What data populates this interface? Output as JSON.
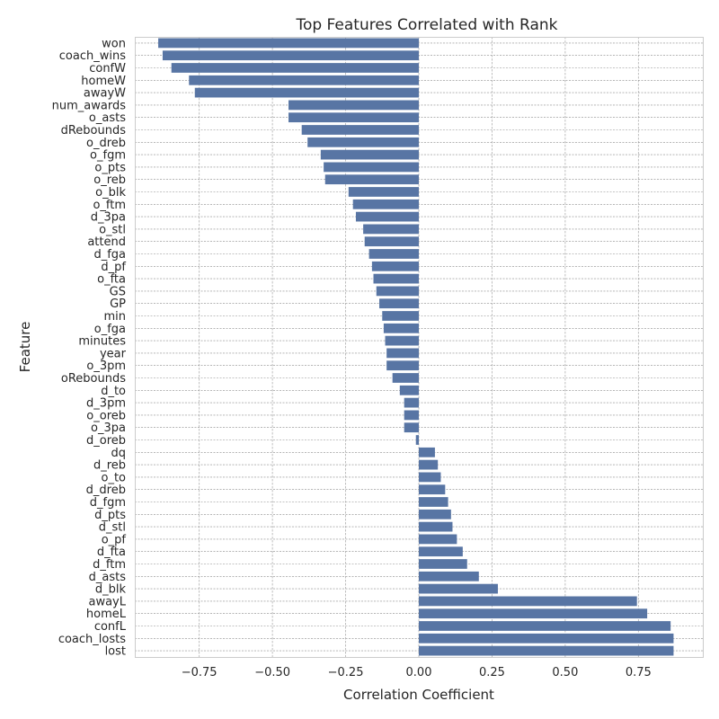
{
  "chart_data": {
    "type": "bar",
    "orientation": "horizontal",
    "title": "Top Features Correlated with Rank",
    "xlabel": "Correlation Coefficient",
    "ylabel": "Feature",
    "xlim": [
      -0.97,
      0.97
    ],
    "xticks": [
      -0.75,
      -0.5,
      -0.25,
      0.0,
      0.25,
      0.5,
      0.75
    ],
    "xtick_labels": [
      "−0.75",
      "−0.50",
      "−0.25",
      "0.00",
      "0.25",
      "0.50",
      "0.75"
    ],
    "grid": true,
    "bar_color": "#5875a4",
    "categories": [
      "won",
      "coach_wins",
      "confW",
      "homeW",
      "awayW",
      "num_awards",
      "o_asts",
      "dRebounds",
      "o_dreb",
      "o_fgm",
      "o_pts",
      "o_reb",
      "o_blk",
      "o_ftm",
      "d_3pa",
      "o_stl",
      "attend",
      "d_fga",
      "d_pf",
      "o_fta",
      "GS",
      "GP",
      "min",
      "o_fga",
      "minutes",
      "year",
      "o_3pm",
      "oRebounds",
      "d_to",
      "d_3pm",
      "o_oreb",
      "o_3pa",
      "d_oreb",
      "dq",
      "d_reb",
      "o_to",
      "d_dreb",
      "d_fgm",
      "d_pts",
      "d_stl",
      "o_pf",
      "d_fta",
      "d_ftm",
      "d_asts",
      "d_blk",
      "awayL",
      "homeL",
      "confL",
      "coach_losts",
      "lost"
    ],
    "values": [
      -0.89,
      -0.875,
      -0.845,
      -0.785,
      -0.765,
      -0.445,
      -0.445,
      -0.4,
      -0.38,
      -0.335,
      -0.325,
      -0.32,
      -0.24,
      -0.225,
      -0.215,
      -0.19,
      -0.185,
      -0.17,
      -0.16,
      -0.155,
      -0.145,
      -0.135,
      -0.125,
      -0.12,
      -0.115,
      -0.11,
      -0.11,
      -0.09,
      -0.065,
      -0.05,
      -0.05,
      -0.05,
      -0.01,
      0.055,
      0.065,
      0.075,
      0.09,
      0.1,
      0.11,
      0.115,
      0.13,
      0.15,
      0.165,
      0.205,
      0.27,
      0.745,
      0.78,
      0.86,
      0.87,
      0.87
    ]
  }
}
